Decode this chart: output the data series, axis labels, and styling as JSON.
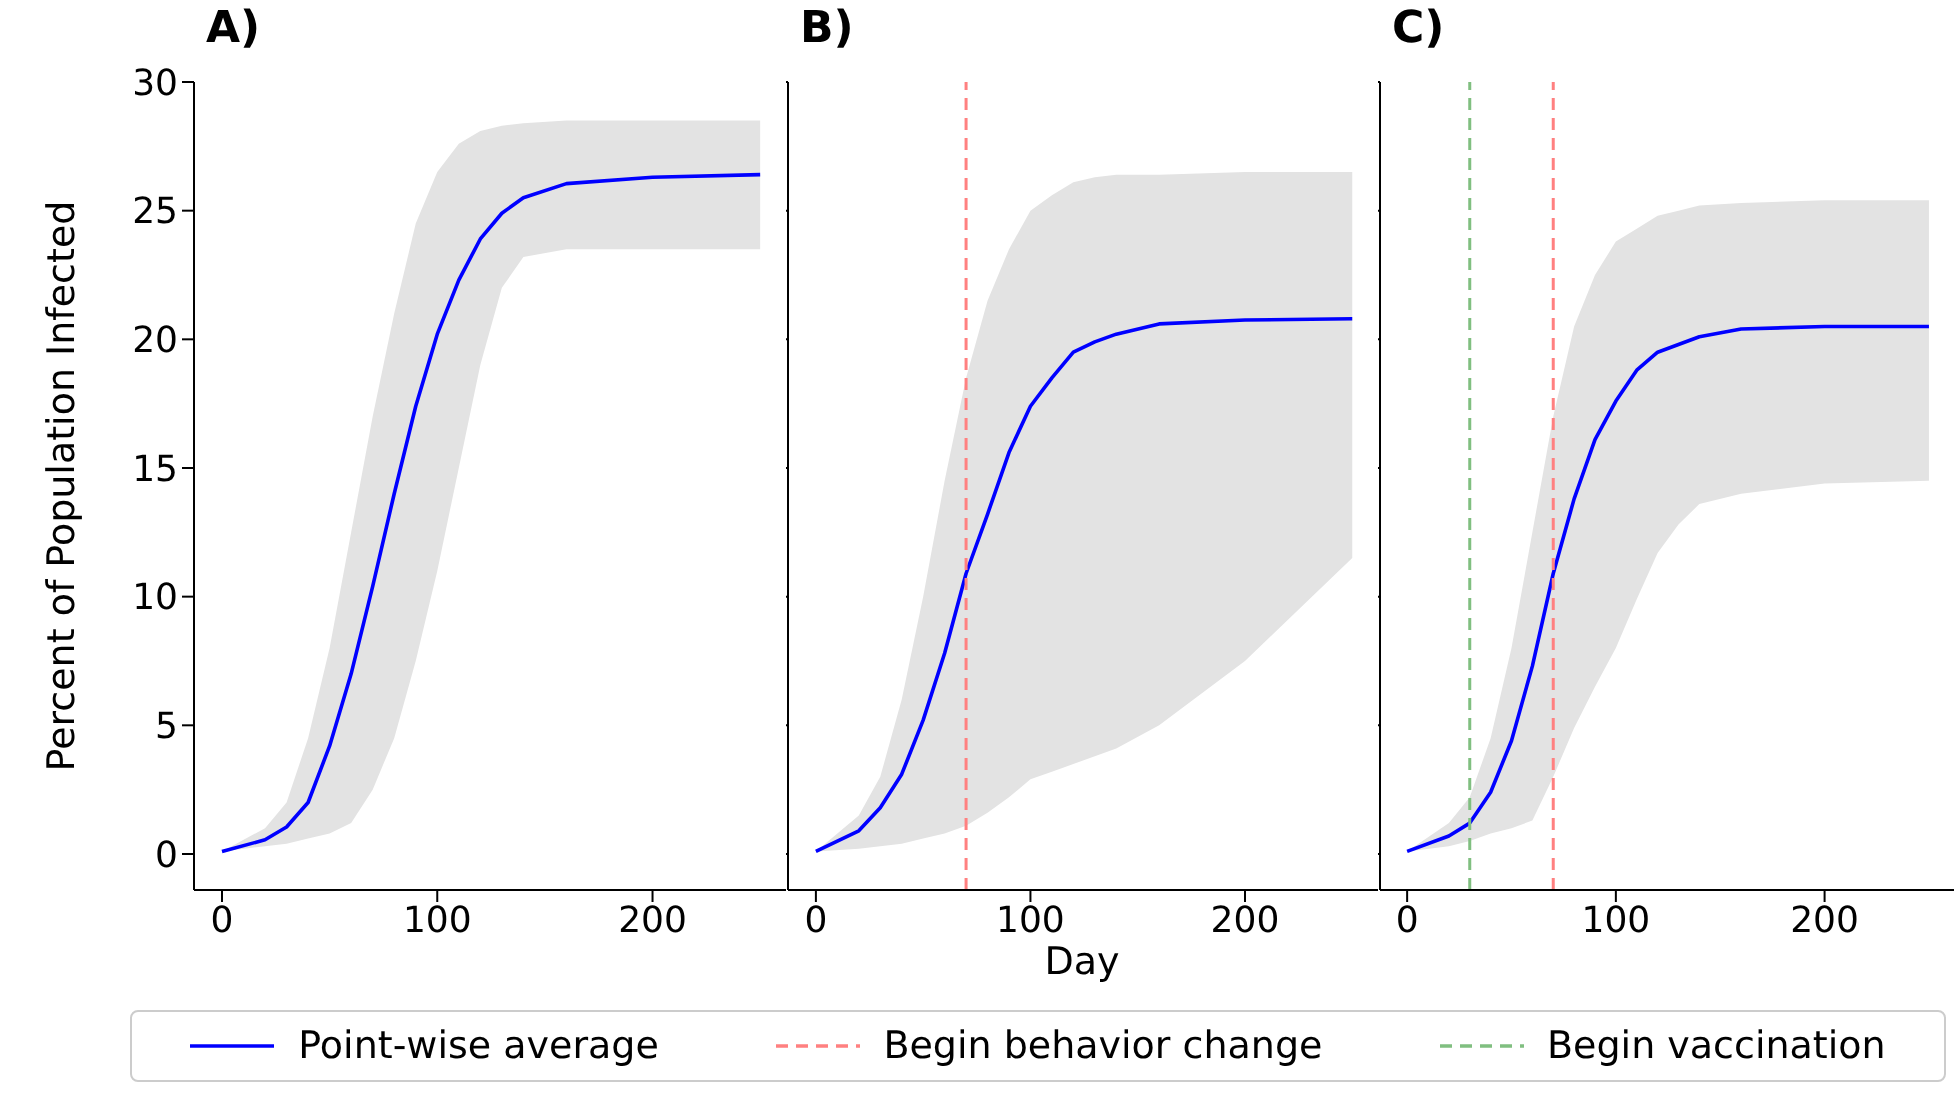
{
  "chart_data": [
    {
      "type": "line",
      "title": "A)",
      "ylabel": "Percent of Population Infected",
      "x": [
        0,
        20,
        30,
        40,
        50,
        60,
        70,
        80,
        90,
        100,
        110,
        120,
        130,
        140,
        160,
        200,
        250
      ],
      "xlim": [
        -13,
        262
      ],
      "xticks": [
        0,
        100,
        200
      ],
      "ylim": [
        -1.4,
        30
      ],
      "yticks": [
        0,
        5,
        10,
        15,
        20,
        25,
        30
      ],
      "legend": "bottom",
      "series": [
        {
          "name": "Point-wise average",
          "color": "#0000ff",
          "values": [
            0.1,
            0.55,
            1.05,
            2.0,
            4.2,
            7.0,
            10.4,
            14.0,
            17.4,
            20.2,
            22.3,
            23.9,
            24.9,
            25.5,
            26.05,
            26.3,
            26.4
          ],
          "lower": [
            0.1,
            0.3,
            0.4,
            0.6,
            0.8,
            1.2,
            2.5,
            4.5,
            7.5,
            11,
            15,
            19,
            22,
            23.2,
            23.5,
            23.5,
            23.5
          ],
          "upper": [
            0.1,
            1.0,
            2.0,
            4.5,
            8,
            12.5,
            17,
            21,
            24.5,
            26.5,
            27.6,
            28.1,
            28.3,
            28.4,
            28.5,
            28.5,
            28.5
          ]
        }
      ]
    },
    {
      "type": "line",
      "title": "B)",
      "xlabel": "Day",
      "x": [
        0,
        20,
        30,
        40,
        50,
        60,
        70,
        80,
        90,
        100,
        110,
        120,
        130,
        140,
        160,
        200,
        250
      ],
      "xlim": [
        -13,
        262
      ],
      "xticks": [
        0,
        100,
        200
      ],
      "ylim": [
        -1.4,
        30
      ],
      "yticks": [
        0,
        5,
        10,
        15,
        20,
        25,
        30
      ],
      "tick_labels": "x",
      "series": [
        {
          "color": "#0000ff",
          "values": [
            0.1,
            0.9,
            1.8,
            3.1,
            5.2,
            7.8,
            10.9,
            13.2,
            15.6,
            17.4,
            18.5,
            19.5,
            19.9,
            20.2,
            20.6,
            20.75,
            20.8
          ],
          "lower": [
            0.1,
            0.2,
            0.3,
            0.4,
            0.6,
            0.8,
            1.1,
            1.6,
            2.2,
            2.9,
            3.2,
            3.5,
            3.8,
            4.1,
            5.0,
            7.5,
            11.5
          ],
          "upper": [
            0.1,
            1.5,
            3,
            6,
            10,
            14.5,
            18.5,
            21.5,
            23.5,
            25,
            25.6,
            26.1,
            26.3,
            26.4,
            26.4,
            26.5,
            26.5
          ]
        }
      ],
      "ref_lines": [
        {
          "axis": "x",
          "value": 70,
          "color": "#ff8080",
          "line_style": "dashed"
        }
      ]
    },
    {
      "type": "line",
      "title": "C)",
      "legend": "bottom",
      "x": [
        0,
        20,
        30,
        40,
        50,
        60,
        70,
        80,
        90,
        100,
        110,
        120,
        130,
        140,
        160,
        200,
        250
      ],
      "xlim": [
        -13,
        262
      ],
      "xticks": [
        0,
        100,
        200
      ],
      "ylim": [
        -1.4,
        30
      ],
      "yticks": [
        0,
        5,
        10,
        15,
        20,
        25,
        30
      ],
      "tick_labels": "x",
      "series": [
        {
          "color": "#0000ff",
          "values": [
            0.1,
            0.7,
            1.2,
            2.4,
            4.4,
            7.3,
            10.9,
            13.8,
            16.1,
            17.6,
            18.8,
            19.5,
            19.8,
            20.1,
            20.4,
            20.5,
            20.5
          ],
          "lower": [
            0.1,
            0.3,
            0.5,
            0.8,
            1.0,
            1.3,
            3,
            4.9,
            6.5,
            8,
            9.9,
            11.7,
            12.8,
            13.6,
            14.0,
            14.4,
            14.5
          ],
          "upper": [
            0.1,
            1.2,
            2.2,
            4.5,
            8,
            12.5,
            17,
            20.5,
            22.5,
            23.8,
            24.3,
            24.8,
            25.0,
            25.2,
            25.3,
            25.4,
            25.4
          ]
        }
      ],
      "ref_lines": [
        {
          "axis": "x",
          "value": 70,
          "label": "Begin behavior change",
          "color": "#ff8080",
          "line_style": "dashed"
        },
        {
          "axis": "x",
          "value": 30,
          "label": "Begin vaccination",
          "color": "#80bf80",
          "line_style": "dashed"
        }
      ]
    }
  ]
}
